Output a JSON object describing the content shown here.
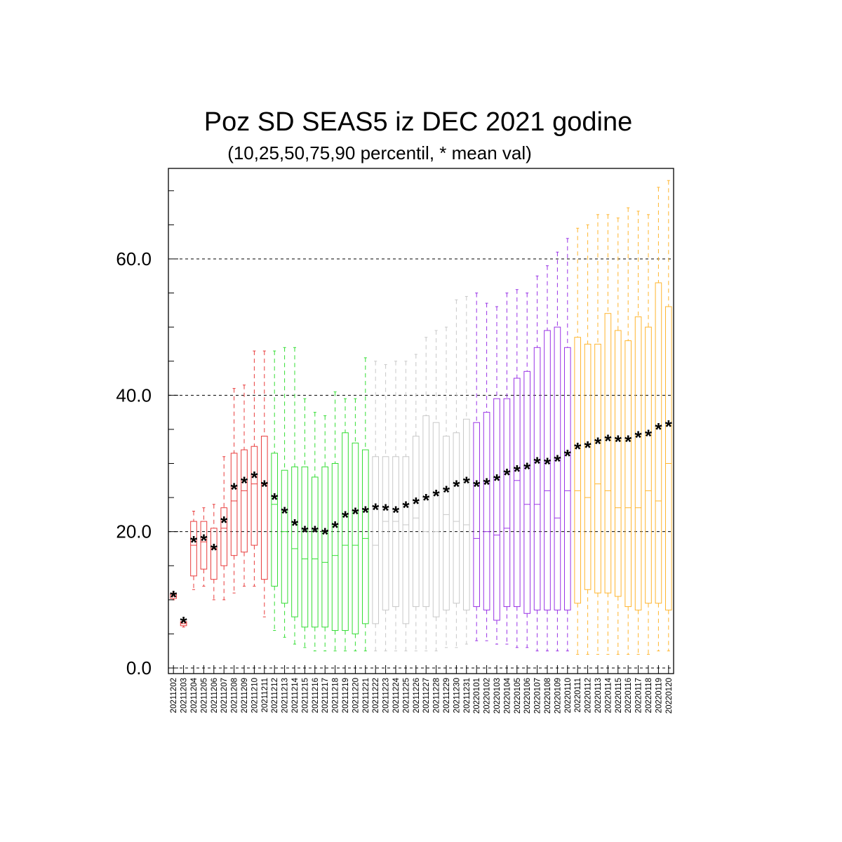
{
  "chart_data": {
    "type": "box",
    "title": "Poz SD SEAS5 iz DEC 2021 godine",
    "subtitle": "(10,25,50,75,90 percentil, * mean val)",
    "xlabel": "",
    "ylabel": "",
    "ylim": [
      0,
      74
    ],
    "yticks": [
      0,
      20,
      40,
      60
    ],
    "ytick_labels": [
      "0.0",
      "20.0",
      "40.0",
      "60.0"
    ],
    "grid": "horizontal dashed at labelled ticks",
    "categories": [
      "20211202",
      "20211203",
      "20211204",
      "20211205",
      "20211206",
      "20211207",
      "20211208",
      "20211209",
      "20211210",
      "20211211",
      "20211212",
      "20211213",
      "20211214",
      "20211215",
      "20211216",
      "20211217",
      "20211218",
      "20211219",
      "20211220",
      "20211221",
      "20211222",
      "20211223",
      "20211224",
      "20211225",
      "20211226",
      "20211227",
      "20211228",
      "20211229",
      "20211230",
      "20211231",
      "20220101",
      "20220102",
      "20220103",
      "20220104",
      "20220105",
      "20220106",
      "20220107",
      "20220108",
      "20220109",
      "20220110",
      "20220111",
      "20220112",
      "20220113",
      "20220114",
      "20220115",
      "20220116",
      "20220117",
      "20220118",
      "20220119",
      "20220120"
    ],
    "p10": [
      10.0,
      6.0,
      11.5,
      12.0,
      10.0,
      10.0,
      11.0,
      12.0,
      12.0,
      7.5,
      5.5,
      4.5,
      3.5,
      3.0,
      2.5,
      2.5,
      2.5,
      2.5,
      2.5,
      2.5,
      2.5,
      2.5,
      2.5,
      2.5,
      2.5,
      2.5,
      2.5,
      3.0,
      3.0,
      3.5,
      4.0,
      4.0,
      3.5,
      3.5,
      3.0,
      3.0,
      2.5,
      2.5,
      2.5,
      2.5,
      2.0,
      2.0,
      2.0,
      2.0,
      2.0,
      2.0,
      2.0,
      2.0,
      2.5,
      2.5
    ],
    "p25": [
      10.2,
      6.2,
      13.5,
      14.5,
      13.0,
      15.0,
      16.5,
      17.0,
      18.0,
      13.0,
      12.0,
      9.5,
      7.5,
      6.0,
      6.0,
      6.0,
      5.5,
      5.5,
      5.0,
      6.5,
      6.5,
      8.5,
      9.0,
      6.5,
      9.0,
      9.0,
      7.5,
      8.5,
      9.5,
      8.5,
      9.0,
      8.5,
      7.0,
      9.0,
      9.0,
      8.0,
      8.5,
      8.5,
      8.5,
      8.5,
      9.5,
      11.5,
      11.0,
      11.0,
      10.5,
      9.0,
      8.5,
      9.5,
      9.5,
      8.5
    ],
    "p50": [
      10.5,
      6.5,
      18.0,
      18.5,
      17.5,
      20.5,
      24.5,
      26.0,
      27.0,
      27.0,
      24.0,
      20.0,
      17.5,
      16.0,
      16.0,
      15.5,
      16.5,
      18.0,
      18.0,
      19.0,
      18.0,
      21.5,
      21.5,
      21.0,
      22.0,
      20.0,
      20.0,
      22.5,
      21.5,
      21.0,
      19.0,
      20.0,
      19.5,
      20.5,
      27.5,
      24.0,
      24.0,
      26.0,
      22.0,
      26.0,
      26.0,
      25.0,
      27.0,
      26.0,
      23.5,
      23.5,
      23.5,
      26.0,
      24.5,
      30.0
    ],
    "p75": [
      10.8,
      6.8,
      21.5,
      21.5,
      20.5,
      23.5,
      31.5,
      32.0,
      32.5,
      34.0,
      31.5,
      29.0,
      29.5,
      29.5,
      28.0,
      29.5,
      30.0,
      34.5,
      33.0,
      32.0,
      31.0,
      31.0,
      31.0,
      31.0,
      34.0,
      37.0,
      36.0,
      34.0,
      34.5,
      36.5,
      36.0,
      37.5,
      39.5,
      39.5,
      42.5,
      43.5,
      47.0,
      49.5,
      50.0,
      47.0,
      48.5,
      47.5,
      47.5,
      52.0,
      49.5,
      48.0,
      51.5,
      50.0,
      56.5,
      53.0
    ],
    "p90": [
      11.0,
      7.0,
      23.0,
      23.5,
      24.0,
      31.0,
      41.0,
      41.5,
      46.5,
      46.5,
      46.5,
      47.0,
      47.0,
      39.5,
      37.5,
      37.0,
      40.5,
      39.5,
      39.5,
      45.5,
      45.0,
      44.5,
      45.0,
      45.0,
      46.0,
      48.5,
      49.5,
      50.0,
      54.0,
      54.5,
      55.0,
      53.5,
      53.0,
      55.0,
      55.5,
      55.0,
      57.5,
      59.0,
      61.0,
      63.0,
      64.5,
      65.0,
      66.5,
      66.5,
      66.0,
      67.5,
      67.0,
      66.5,
      70.5,
      71.5
    ],
    "mean": [
      10.5,
      6.7,
      18.5,
      18.8,
      17.4,
      21.4,
      26.3,
      27.2,
      28.0,
      26.7,
      24.8,
      22.8,
      21.0,
      20.0,
      20.0,
      19.7,
      20.7,
      22.2,
      22.7,
      22.9,
      23.3,
      23.2,
      22.9,
      23.6,
      24.2,
      24.7,
      25.3,
      25.9,
      26.7,
      27.2,
      26.7,
      27.0,
      27.6,
      28.4,
      28.9,
      29.3,
      30.1,
      30.0,
      30.4,
      31.2,
      32.2,
      32.4,
      33.0,
      33.4,
      33.3,
      33.3,
      33.9,
      34.1,
      35.1,
      35.5
    ],
    "colors": {
      "dec_early": "#e83c3c",
      "dec_mid": "#33dd33",
      "dec_late": "#c8c8c8",
      "jan_early": "#9933e6",
      "jan_late": "#ffb52e",
      "mean_marker": "#000060"
    },
    "color_groups": [
      {
        "color": "dec_early",
        "from": 0,
        "to": 9
      },
      {
        "color": "dec_mid",
        "from": 10,
        "to": 19
      },
      {
        "color": "dec_late",
        "from": 20,
        "to": 29
      },
      {
        "color": "jan_early",
        "from": 30,
        "to": 39
      },
      {
        "color": "jan_late",
        "from": 40,
        "to": 49
      }
    ],
    "mean_marker_symbol": "*"
  }
}
